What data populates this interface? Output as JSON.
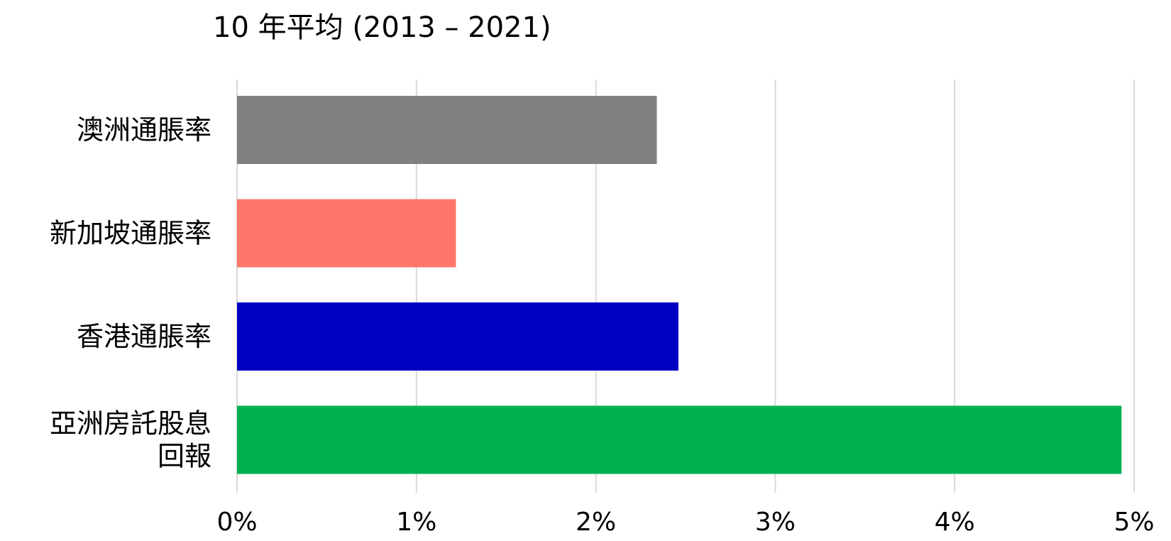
{
  "chart_data": {
    "type": "bar",
    "orientation": "horizontal",
    "title": "10 年平均 (2013 – 2021)",
    "categories": [
      [
        "澳洲通脹率"
      ],
      [
        "新加坡通脹率"
      ],
      [
        "香港通脹率"
      ],
      [
        "亞洲房託股息",
        "回報"
      ]
    ],
    "values": [
      2.34,
      1.22,
      2.46,
      4.93
    ],
    "colors": [
      "#808080",
      "#ff766b",
      "#0000c3",
      "#00b050"
    ],
    "xlim": [
      0,
      5
    ],
    "x_ticks": [
      0,
      1,
      2,
      3,
      4,
      5
    ],
    "x_tick_labels": [
      "0%",
      "1%",
      "2%",
      "3%",
      "4%",
      "5%"
    ],
    "value_unit": "%",
    "grid": true,
    "legend": "none"
  }
}
